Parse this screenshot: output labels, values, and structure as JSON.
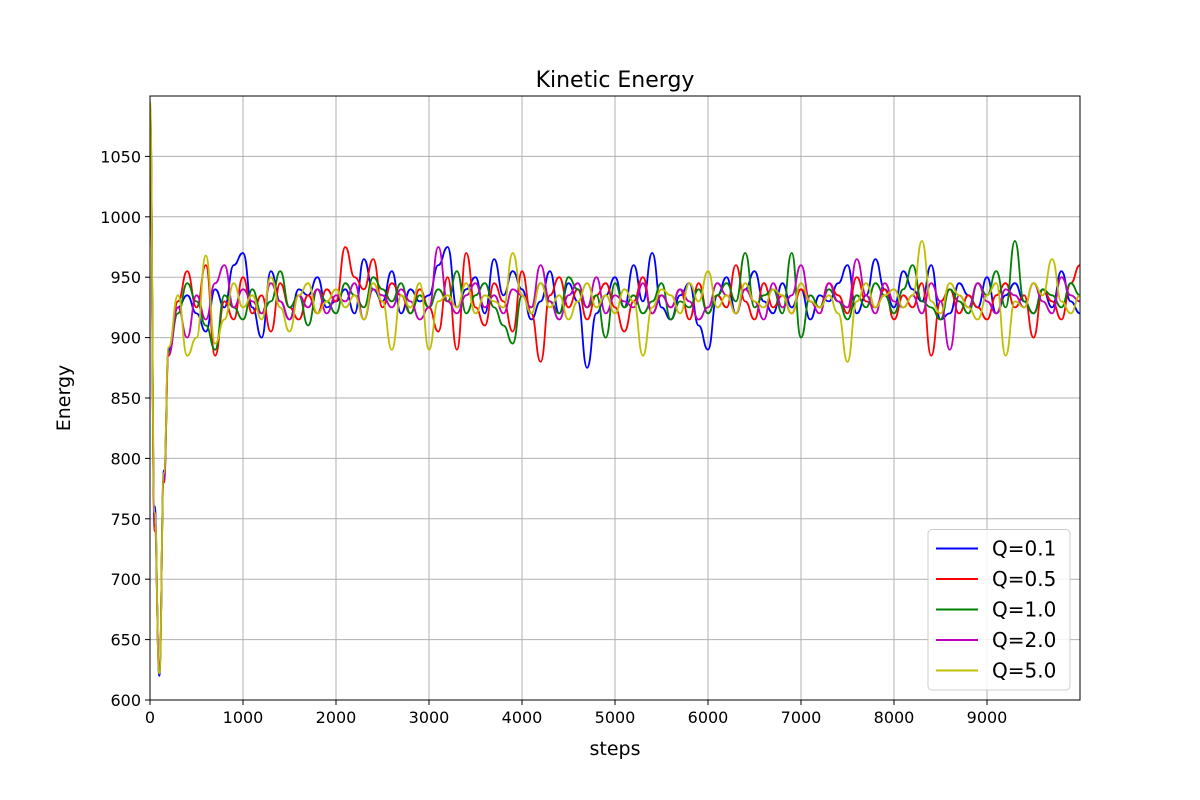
{
  "chart_data": {
    "type": "line",
    "title": "Kinetic Energy",
    "xlabel": "steps",
    "ylabel": "Energy",
    "xlim": [
      0,
      10000
    ],
    "ylim": [
      600,
      1100
    ],
    "xticks": [
      0,
      1000,
      2000,
      3000,
      4000,
      5000,
      6000,
      7000,
      8000,
      9000
    ],
    "yticks": [
      600,
      650,
      700,
      750,
      800,
      850,
      900,
      950,
      1000,
      1050
    ],
    "grid": true,
    "legend_position": "lower-right",
    "series": [
      {
        "name": "Q=0.1",
        "color": "#0000ff",
        "x": [
          0,
          50,
          100,
          150,
          200,
          300,
          400,
          500,
          600,
          700,
          800,
          900,
          1000,
          1100,
          1200,
          1300,
          1400,
          1500,
          1600,
          1700,
          1800,
          1900,
          2000,
          2100,
          2200,
          2300,
          2400,
          2500,
          2600,
          2700,
          2800,
          2900,
          3000,
          3100,
          3200,
          3300,
          3400,
          3500,
          3600,
          3700,
          3800,
          3900,
          4000,
          4100,
          4200,
          4300,
          4400,
          4500,
          4600,
          4700,
          4800,
          4900,
          5000,
          5100,
          5200,
          5300,
          5400,
          5500,
          5600,
          5700,
          5800,
          5900,
          6000,
          6100,
          6200,
          6300,
          6400,
          6500,
          6600,
          6700,
          6800,
          6900,
          7000,
          7100,
          7200,
          7300,
          7400,
          7500,
          7600,
          7700,
          7800,
          7900,
          8000,
          8100,
          8200,
          8300,
          8400,
          8500,
          8600,
          8700,
          8800,
          8900,
          9000,
          9100,
          9200,
          9300,
          9400,
          9500,
          9600,
          9700,
          9800,
          9900,
          10000
        ],
        "values": [
          1090,
          760,
          620,
          790,
          890,
          925,
          935,
          920,
          905,
          940,
          925,
          960,
          970,
          925,
          900,
          955,
          930,
          915,
          940,
          935,
          950,
          925,
          930,
          940,
          920,
          965,
          940,
          930,
          955,
          920,
          940,
          930,
          935,
          960,
          975,
          925,
          940,
          950,
          920,
          965,
          935,
          955,
          940,
          915,
          930,
          955,
          920,
          945,
          930,
          875,
          920,
          935,
          950,
          925,
          960,
          930,
          970,
          925,
          915,
          935,
          945,
          910,
          890,
          935,
          950,
          920,
          940,
          955,
          930,
          920,
          945,
          925,
          940,
          915,
          935,
          930,
          945,
          960,
          920,
          935,
          965,
          940,
          925,
          955,
          940,
          930,
          960,
          915,
          920,
          945,
          935,
          925,
          950,
          920,
          935,
          945,
          930,
          920,
          940,
          925,
          955,
          930,
          920
        ]
      },
      {
        "name": "Q=0.5",
        "color": "#ff0000",
        "x": [
          0,
          50,
          100,
          150,
          200,
          300,
          400,
          500,
          600,
          700,
          800,
          900,
          1000,
          1100,
          1200,
          1300,
          1400,
          1500,
          1600,
          1700,
          1800,
          1900,
          2000,
          2100,
          2200,
          2300,
          2400,
          2500,
          2600,
          2700,
          2800,
          2900,
          3000,
          3100,
          3200,
          3300,
          3400,
          3500,
          3600,
          3700,
          3800,
          3900,
          4000,
          4100,
          4200,
          4300,
          4400,
          4500,
          4600,
          4700,
          4800,
          4900,
          5000,
          5100,
          5200,
          5300,
          5400,
          5500,
          5600,
          5700,
          5800,
          5900,
          6000,
          6100,
          6200,
          6300,
          6400,
          6500,
          6600,
          6700,
          6800,
          6900,
          7000,
          7100,
          7200,
          7300,
          7400,
          7500,
          7600,
          7700,
          7800,
          7900,
          8000,
          8100,
          8200,
          8300,
          8400,
          8500,
          8600,
          8700,
          8800,
          8900,
          9000,
          9100,
          9200,
          9300,
          9400,
          9500,
          9600,
          9700,
          9800,
          9900,
          10000
        ],
        "values": [
          1080,
          740,
          630,
          780,
          885,
          930,
          955,
          925,
          960,
          885,
          930,
          915,
          950,
          920,
          935,
          905,
          945,
          925,
          915,
          935,
          920,
          940,
          930,
          975,
          950,
          940,
          965,
          925,
          945,
          935,
          920,
          940,
          925,
          905,
          950,
          890,
          970,
          925,
          910,
          945,
          930,
          905,
          955,
          920,
          880,
          935,
          950,
          925,
          940,
          915,
          935,
          945,
          925,
          905,
          930,
          950,
          920,
          935,
          925,
          940,
          915,
          945,
          920,
          935,
          925,
          960,
          930,
          915,
          945,
          925,
          935,
          920,
          940,
          930,
          925,
          945,
          935,
          920,
          950,
          930,
          925,
          940,
          915,
          935,
          925,
          945,
          885,
          930,
          940,
          920,
          935,
          925,
          915,
          935,
          945,
          925,
          935,
          900,
          940,
          930,
          915,
          945,
          960
        ]
      },
      {
        "name": "Q=1.0",
        "color": "#008000",
        "x": [
          0,
          50,
          100,
          150,
          200,
          300,
          400,
          500,
          600,
          700,
          800,
          900,
          1000,
          1100,
          1200,
          1300,
          1400,
          1500,
          1600,
          1700,
          1800,
          1900,
          2000,
          2100,
          2200,
          2300,
          2400,
          2500,
          2600,
          2700,
          2800,
          2900,
          3000,
          3100,
          3200,
          3300,
          3400,
          3500,
          3600,
          3700,
          3800,
          3900,
          4000,
          4100,
          4200,
          4300,
          4400,
          4500,
          4600,
          4700,
          4800,
          4900,
          5000,
          5100,
          5200,
          5300,
          5400,
          5500,
          5600,
          5700,
          5800,
          5900,
          6000,
          6100,
          6200,
          6300,
          6400,
          6500,
          6600,
          6700,
          6800,
          6900,
          7000,
          7100,
          7200,
          7300,
          7400,
          7500,
          7600,
          7700,
          7800,
          7900,
          8000,
          8100,
          8200,
          8300,
          8400,
          8500,
          8600,
          8700,
          8800,
          8900,
          9000,
          9100,
          9200,
          9300,
          9400,
          9500,
          9600,
          9700,
          9800,
          9900,
          10000
        ],
        "values": [
          1085,
          750,
          625,
          785,
          888,
          920,
          945,
          930,
          910,
          890,
          935,
          925,
          915,
          940,
          920,
          930,
          955,
          925,
          935,
          910,
          940,
          930,
          920,
          945,
          935,
          925,
          950,
          940,
          930,
          945,
          920,
          935,
          925,
          940,
          930,
          955,
          920,
          935,
          945,
          925,
          910,
          895,
          935,
          925,
          945,
          930,
          920,
          950,
          940,
          925,
          935,
          900,
          945,
          925,
          935,
          920,
          930,
          945,
          915,
          930,
          925,
          940,
          920,
          935,
          945,
          930,
          970,
          925,
          935,
          940,
          920,
          970,
          900,
          935,
          925,
          940,
          930,
          915,
          935,
          925,
          945,
          935,
          920,
          940,
          960,
          930,
          925,
          915,
          940,
          930,
          920,
          945,
          935,
          955,
          925,
          980,
          930,
          920,
          940,
          935,
          925,
          945,
          935
        ]
      },
      {
        "name": "Q=2.0",
        "color": "#bf00bf",
        "x": [
          0,
          50,
          100,
          150,
          200,
          300,
          400,
          500,
          600,
          700,
          800,
          900,
          1000,
          1100,
          1200,
          1300,
          1400,
          1500,
          1600,
          1700,
          1800,
          1900,
          2000,
          2100,
          2200,
          2300,
          2400,
          2500,
          2600,
          2700,
          2800,
          2900,
          3000,
          3100,
          3200,
          3300,
          3400,
          3500,
          3600,
          3700,
          3800,
          3900,
          4000,
          4100,
          4200,
          4300,
          4400,
          4500,
          4600,
          4700,
          4800,
          4900,
          5000,
          5100,
          5200,
          5300,
          5400,
          5500,
          5600,
          5700,
          5800,
          5900,
          6000,
          6100,
          6200,
          6300,
          6400,
          6500,
          6600,
          6700,
          6800,
          6900,
          7000,
          7100,
          7200,
          7300,
          7400,
          7500,
          7600,
          7700,
          7800,
          7900,
          8000,
          8100,
          8200,
          8300,
          8400,
          8500,
          8600,
          8700,
          8800,
          8900,
          9000,
          9100,
          9200,
          9300,
          9400,
          9500,
          9600,
          9700,
          9800,
          9900,
          10000
        ],
        "values": [
          1082,
          745,
          628,
          782,
          886,
          925,
          900,
          935,
          915,
          945,
          960,
          925,
          940,
          930,
          920,
          945,
          930,
          915,
          935,
          925,
          940,
          920,
          935,
          930,
          945,
          915,
          940,
          935,
          925,
          940,
          930,
          915,
          925,
          975,
          930,
          920,
          935,
          945,
          925,
          935,
          920,
          940,
          935,
          925,
          960,
          930,
          915,
          935,
          945,
          925,
          950,
          920,
          935,
          930,
          925,
          945,
          920,
          935,
          925,
          940,
          930,
          915,
          925,
          945,
          935,
          920,
          940,
          930,
          915,
          945,
          925,
          935,
          960,
          930,
          920,
          945,
          930,
          925,
          965,
          935,
          920,
          945,
          930,
          925,
          935,
          920,
          945,
          930,
          890,
          935,
          925,
          945,
          930,
          920,
          940,
          935,
          925,
          945,
          930,
          920,
          950,
          935,
          930
        ]
      },
      {
        "name": "Q=5.0",
        "color": "#bfbf00",
        "x": [
          0,
          50,
          100,
          150,
          200,
          300,
          400,
          500,
          600,
          700,
          800,
          900,
          1000,
          1100,
          1200,
          1300,
          1400,
          1500,
          1600,
          1700,
          1800,
          1900,
          2000,
          2100,
          2200,
          2300,
          2400,
          2500,
          2600,
          2700,
          2800,
          2900,
          3000,
          3100,
          3200,
          3300,
          3400,
          3500,
          3600,
          3700,
          3800,
          3900,
          4000,
          4100,
          4200,
          4300,
          4400,
          4500,
          4600,
          4700,
          4800,
          4900,
          5000,
          5100,
          5200,
          5300,
          5400,
          5500,
          5600,
          5700,
          5800,
          5900,
          6000,
          6100,
          6200,
          6300,
          6400,
          6500,
          6600,
          6700,
          6800,
          6900,
          7000,
          7100,
          7200,
          7300,
          7400,
          7500,
          7600,
          7700,
          7800,
          7900,
          8000,
          8100,
          8200,
          8300,
          8400,
          8500,
          8600,
          8700,
          8800,
          8900,
          9000,
          9100,
          9200,
          9300,
          9400,
          9500,
          9600,
          9700,
          9800,
          9900,
          10000
        ],
        "values": [
          1095,
          755,
          622,
          788,
          892,
          935,
          885,
          900,
          968,
          895,
          915,
          945,
          925,
          935,
          915,
          950,
          925,
          905,
          935,
          945,
          920,
          930,
          940,
          925,
          935,
          915,
          945,
          930,
          890,
          935,
          925,
          945,
          890,
          930,
          935,
          925,
          945,
          920,
          935,
          930,
          925,
          970,
          935,
          920,
          945,
          925,
          935,
          915,
          930,
          945,
          925,
          935,
          920,
          940,
          930,
          885,
          925,
          940,
          935,
          920,
          945,
          930,
          955,
          925,
          935,
          920,
          945,
          930,
          925,
          940,
          935,
          920,
          945,
          930,
          925,
          935,
          920,
          880,
          930,
          945,
          925,
          935,
          940,
          925,
          935,
          980,
          930,
          920,
          945,
          935,
          925,
          915,
          935,
          945,
          885,
          930,
          925,
          945,
          935,
          965,
          930,
          920,
          935
        ]
      }
    ]
  }
}
